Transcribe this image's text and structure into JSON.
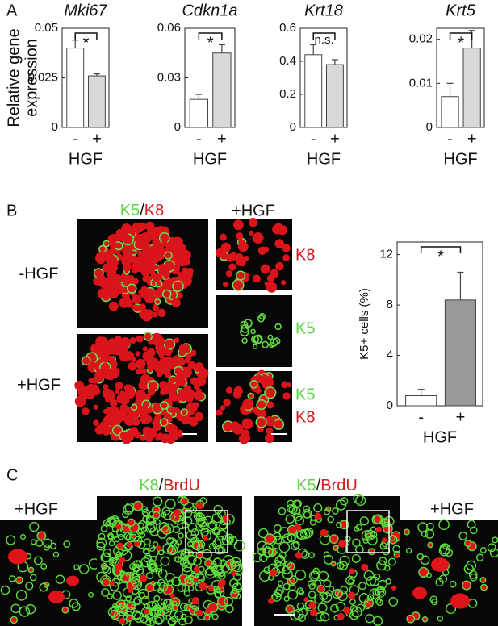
{
  "panels": [
    "A",
    "B",
    "C"
  ],
  "chart_data": [
    {
      "type": "bar",
      "title": "Mki67",
      "y_label": [
        "Relative gene",
        "expression"
      ],
      "x_label": "HGF",
      "categories": [
        "-",
        "+"
      ],
      "values": [
        0.04,
        0.026
      ],
      "errors": [
        0.004,
        0.001
      ],
      "colors": [
        "#ffffff",
        "#d9d9d9"
      ],
      "ylim": [
        0,
        0.05
      ],
      "yticks": [
        0,
        0.025,
        0.05
      ],
      "significance": "*"
    },
    {
      "type": "bar",
      "title": "Cdkn1a",
      "x_label": "HGF",
      "categories": [
        "-",
        "+"
      ],
      "values": [
        0.017,
        0.045
      ],
      "errors": [
        0.003,
        0.005
      ],
      "colors": [
        "#ffffff",
        "#d9d9d9"
      ],
      "ylim": [
        0,
        0.06
      ],
      "yticks": [
        0,
        0.03,
        0.06
      ],
      "significance": "*"
    },
    {
      "type": "bar",
      "title": "Krt18",
      "x_label": "HGF",
      "categories": [
        "-",
        "+"
      ],
      "values": [
        0.44,
        0.38
      ],
      "errors": [
        0.06,
        0.03
      ],
      "colors": [
        "#ffffff",
        "#d9d9d9"
      ],
      "ylim": [
        0,
        0.6
      ],
      "yticks": [
        0,
        0.2,
        0.4,
        0.6
      ],
      "significance": "n.s."
    },
    {
      "type": "bar",
      "title": "Krt5",
      "x_label": "HGF",
      "categories": [
        "-",
        "+"
      ],
      "values": [
        0.007,
        0.018
      ],
      "errors": [
        0.003,
        0.004
      ],
      "colors": [
        "#ffffff",
        "#d9d9d9"
      ],
      "ylim": [
        0,
        0.0225
      ],
      "yticks": [
        0,
        0.01,
        0.02
      ],
      "significance": "*"
    },
    {
      "type": "bar",
      "y_label": [
        "K5+ cells (%)"
      ],
      "x_label": "HGF",
      "categories": [
        "-",
        "+"
      ],
      "values": [
        0.8,
        8.4
      ],
      "errors": [
        0.5,
        2.2
      ],
      "colors": [
        "#ffffff",
        "#999999"
      ],
      "ylim": [
        0,
        13
      ],
      "yticks": [
        0,
        4,
        8,
        12
      ],
      "significance": "*"
    }
  ],
  "panel_b": {
    "stain_title": [
      "K5",
      "/",
      "K8"
    ],
    "row_labels": [
      "-HGF",
      "+HGF"
    ],
    "inset_title": "+HGF",
    "inset_labels": [
      [
        "K8"
      ],
      [
        "K5"
      ],
      [
        "K5",
        "K8"
      ]
    ]
  },
  "panel_c": {
    "left_title": [
      "K8",
      "/",
      "BrdU"
    ],
    "right_title": [
      "K5",
      "/",
      "BrdU"
    ],
    "inset_labels": [
      "+HGF",
      "+HGF"
    ]
  }
}
